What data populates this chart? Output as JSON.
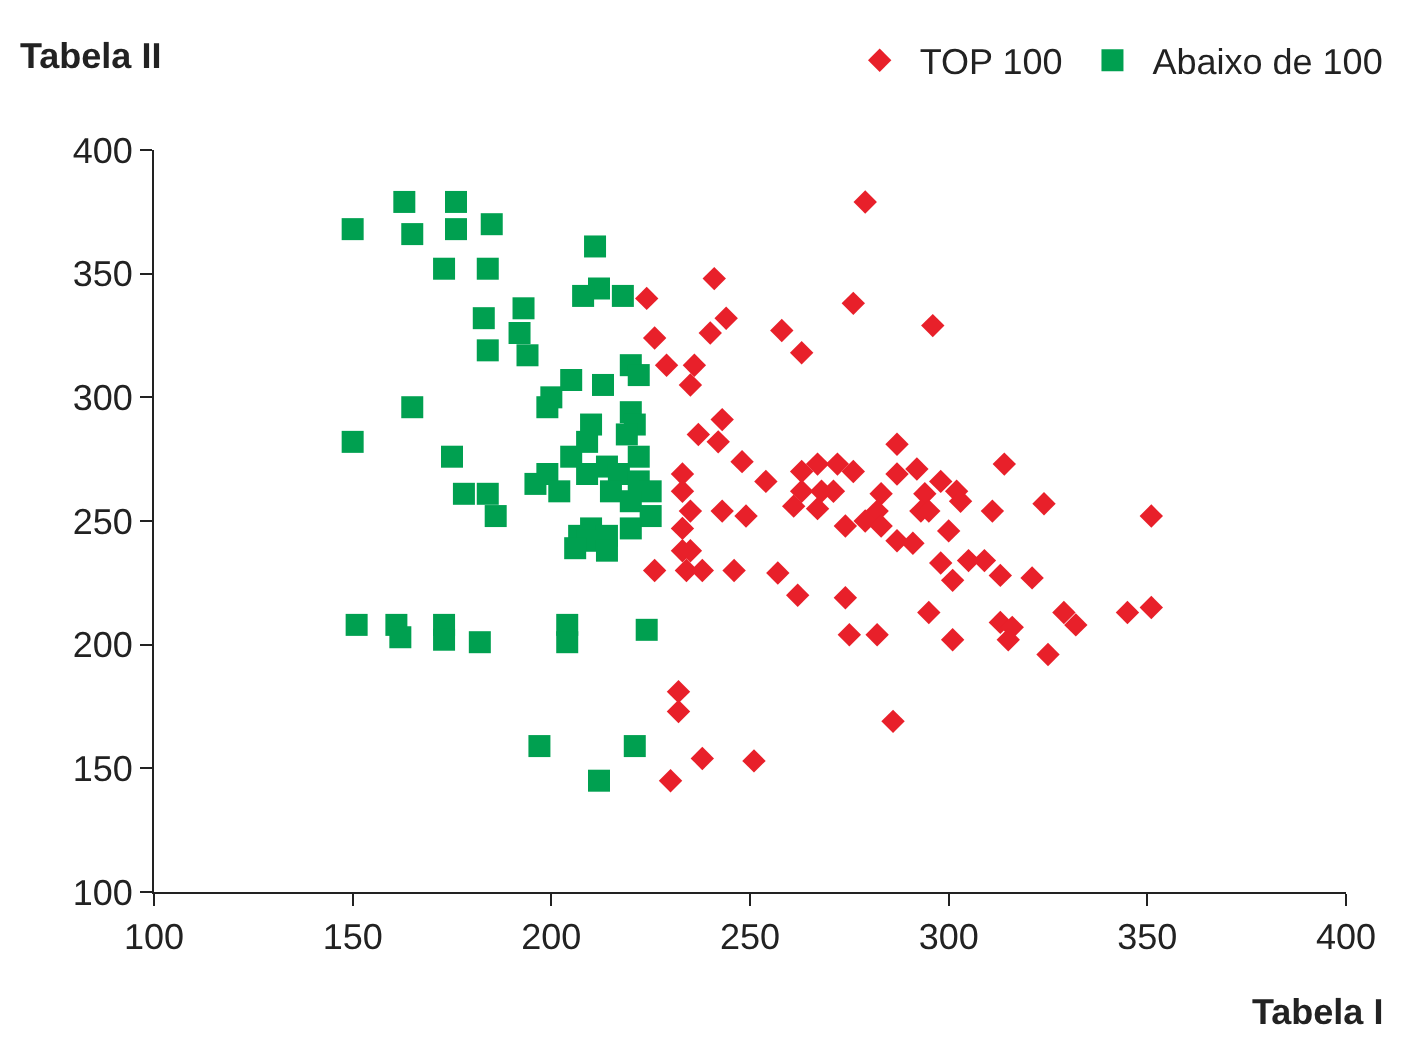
{
  "chart_data": {
    "type": "scatter",
    "xlabel": "Tabela I",
    "ylabel": "Tabela II",
    "xlim": [
      100,
      400
    ],
    "xticks": [
      100,
      150,
      200,
      250,
      300,
      350,
      400
    ],
    "ylim": [
      100,
      400
    ],
    "yticks": [
      100,
      150,
      200,
      250,
      300,
      350,
      400
    ],
    "legend": "top right",
    "series": [
      {
        "name": "TOP 100",
        "color": "#e8202a",
        "marker": "diamond",
        "x": [
          241,
          224,
          244,
          240,
          226,
          258,
          263,
          229,
          236,
          235,
          243,
          237,
          242,
          248,
          254,
          233,
          233,
          235,
          243,
          249,
          261,
          263,
          233,
          233,
          235,
          234,
          238,
          226,
          246,
          257,
          262,
          274,
          275,
          282,
          232,
          232,
          238,
          251,
          230,
          286,
          267,
          272,
          276,
          263,
          268,
          271,
          267,
          274,
          287,
          287,
          292,
          298,
          294,
          302,
          303,
          283,
          282,
          279,
          283,
          293,
          295,
          287,
          291,
          300,
          314,
          311,
          324,
          351,
          298,
          305,
          309,
          301,
          313,
          321,
          295,
          301,
          313,
          316,
          315,
          329,
          332,
          345,
          351,
          325,
          279,
          276,
          296
        ],
        "values": [
          348,
          340,
          332,
          326,
          324,
          327,
          318,
          313,
          313,
          305,
          291,
          285,
          282,
          274,
          266,
          269,
          262,
          254,
          254,
          252,
          256,
          270,
          247,
          238,
          238,
          230,
          230,
          230,
          230,
          229,
          220,
          219,
          204,
          204,
          181,
          173,
          154,
          153,
          145,
          169,
          273,
          273,
          270,
          262,
          262,
          262,
          255,
          248,
          281,
          269,
          271,
          266,
          261,
          262,
          258,
          261,
          254,
          250,
          248,
          254,
          254,
          242,
          241,
          246,
          273,
          254,
          257,
          252,
          233,
          234,
          234,
          226,
          228,
          227,
          213,
          202,
          209,
          207,
          202,
          213,
          208,
          213,
          215,
          196,
          379,
          338,
          329
        ]
      },
      {
        "name": "Abaixo de 100",
        "color": "#00a050",
        "marker": "square",
        "x": [
          163,
          176,
          150,
          165,
          176,
          185,
          211,
          173,
          184,
          212,
          208,
          218,
          193,
          183,
          192,
          184,
          194,
          220,
          222,
          205,
          213,
          200,
          199,
          165,
          150,
          175,
          210,
          209,
          220,
          221,
          219,
          222,
          205,
          214,
          199,
          196,
          202,
          209,
          217,
          222,
          225,
          215,
          220,
          225,
          178,
          184,
          186,
          210,
          220,
          207,
          214,
          209,
          206,
          214,
          151,
          161,
          162,
          173,
          173,
          182,
          204,
          204,
          224,
          197,
          221,
          212
        ],
        "values": [
          379,
          379,
          368,
          366,
          368,
          370,
          361,
          352,
          352,
          344,
          341,
          341,
          336,
          332,
          326,
          319,
          317,
          313,
          309,
          307,
          305,
          300,
          296,
          296,
          282,
          276,
          289,
          282,
          294,
          289,
          285,
          276,
          276,
          272,
          269,
          265,
          262,
          269,
          269,
          266,
          262,
          262,
          258,
          252,
          261,
          261,
          252,
          247,
          247,
          244,
          244,
          242,
          239,
          238,
          208,
          208,
          203,
          208,
          202,
          201,
          208,
          201,
          206,
          159,
          159,
          145
        ]
      }
    ]
  }
}
